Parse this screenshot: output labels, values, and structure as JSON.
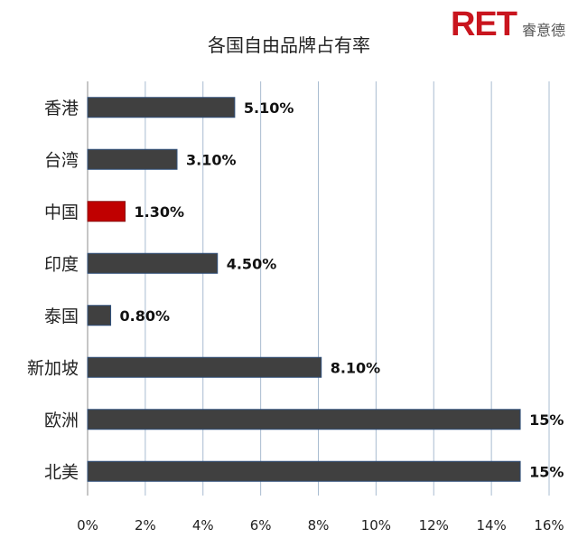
{
  "logo": {
    "mark": "RET",
    "name": "睿意德"
  },
  "chart_data": {
    "type": "bar",
    "orientation": "horizontal",
    "title": "各国自由品牌占有率",
    "xlabel": "",
    "ylabel": "",
    "xlim": [
      0,
      16
    ],
    "x_ticks": [
      "0%",
      "2%",
      "4%",
      "6%",
      "8%",
      "10%",
      "12%",
      "14%",
      "16%"
    ],
    "grid": "vertical",
    "categories": [
      "香港",
      "台湾",
      "中国",
      "印度",
      "泰国",
      "新加坡",
      "欧洲",
      "北美"
    ],
    "values": [
      5.1,
      3.1,
      1.3,
      4.5,
      0.8,
      8.1,
      15,
      15
    ],
    "data_labels": [
      "5.10%",
      "3.10%",
      "1.30%",
      "4.50%",
      "0.80%",
      "8.10%",
      "15%",
      "15%"
    ],
    "colors": {
      "default_bar": "#404040",
      "highlight_bar": "#c00000",
      "bar_border": "#2f4f7a",
      "grid": "#a9bcd0"
    },
    "highlight_category": "中国"
  }
}
